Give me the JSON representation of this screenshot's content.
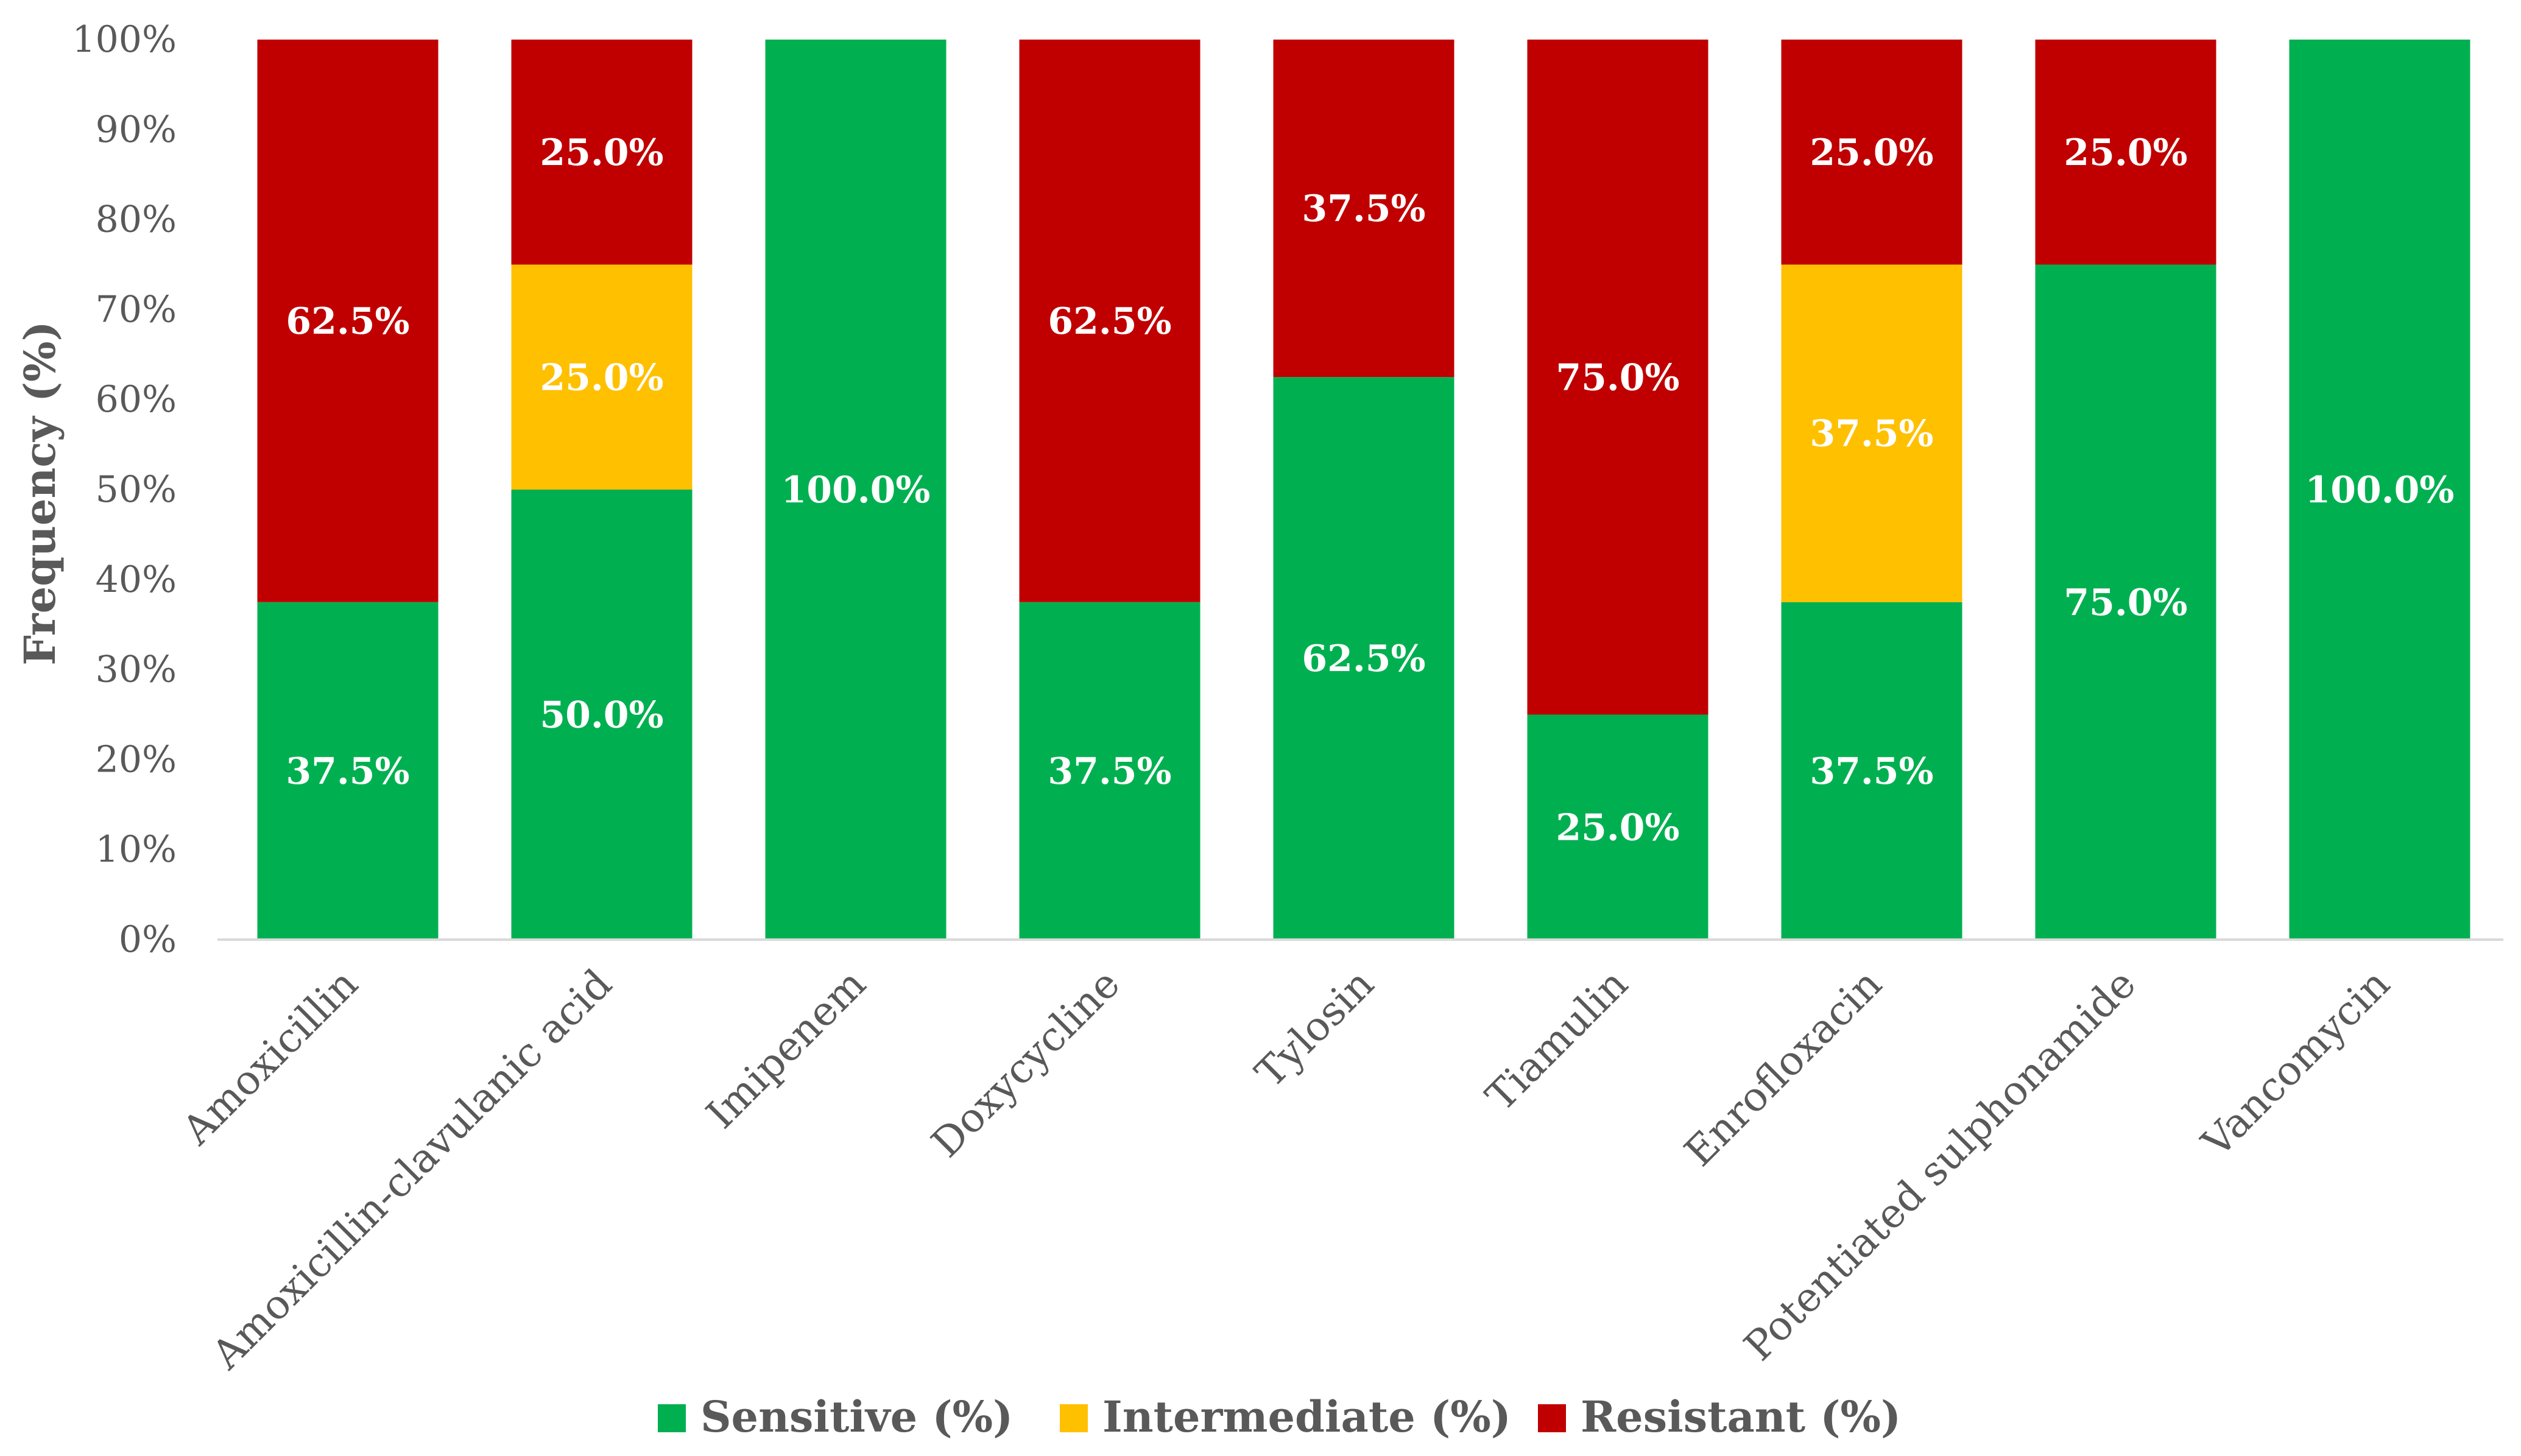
{
  "chart_data": {
    "type": "bar",
    "stacked": true,
    "title": "",
    "xlabel": "",
    "ylabel": "Frequency (%)",
    "ylim": [
      0,
      100
    ],
    "y_ticks": [
      "0%",
      "10%",
      "20%",
      "30%",
      "40%",
      "50%",
      "60%",
      "70%",
      "80%",
      "90%",
      "100%"
    ],
    "grid": false,
    "legend_position": "bottom",
    "categories": [
      "Amoxicillin",
      "Amoxicillin-clavulanic acid",
      "Imipenem",
      "Doxycycline",
      "Tylosin",
      "Tiamulin",
      "Enrofloxacin",
      "Potentiated sulphonamide",
      "Vancomycin"
    ],
    "series": [
      {
        "name": "Sensitive (%)",
        "color": "#00b050",
        "values": [
          37.5,
          50.0,
          100.0,
          37.5,
          62.5,
          25.0,
          37.5,
          75.0,
          100.0
        ],
        "labels": [
          "37.5%",
          "50.0%",
          "100.0%",
          "37.5%",
          "62.5%",
          "25.0%",
          "37.5%",
          "75.0%",
          "100.0%"
        ]
      },
      {
        "name": "Intermediate (%)",
        "color": "#ffc000",
        "values": [
          0,
          25.0,
          0,
          0,
          0,
          0,
          37.5,
          0,
          0
        ],
        "labels": [
          "",
          "25.0%",
          "",
          "",
          "",
          "",
          "37.5%",
          "",
          ""
        ]
      },
      {
        "name": "Resistant (%)",
        "color": "#c00000",
        "values": [
          62.5,
          25.0,
          0,
          62.5,
          37.5,
          75.0,
          25.0,
          25.0,
          0
        ],
        "labels": [
          "62.5%",
          "25.0%",
          "",
          "62.5%",
          "37.5%",
          "75.0%",
          "25.0%",
          "25.0%",
          ""
        ]
      }
    ]
  }
}
